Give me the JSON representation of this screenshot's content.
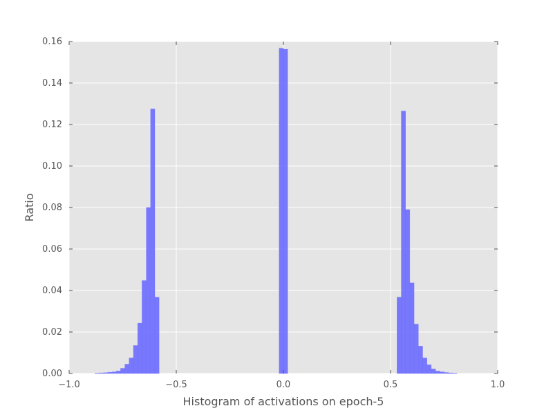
{
  "chart_data": {
    "type": "bar",
    "title": "",
    "xlabel": "Histogram of activations on epoch-5",
    "ylabel": "Ratio",
    "xlim": [
      -1.0,
      1.0
    ],
    "ylim": [
      0.0,
      0.16
    ],
    "grid": true,
    "colors": {
      "bar": "#6b6bff",
      "plot_background": "#e5e5e5",
      "grid": "#ffffff",
      "text": "#555555"
    },
    "x_ticks": [
      {
        "value": -1.0,
        "label": "−1.0"
      },
      {
        "value": -0.5,
        "label": "−0.5"
      },
      {
        "value": 0.0,
        "label": "0.0"
      },
      {
        "value": 0.5,
        "label": "0.5"
      },
      {
        "value": 1.0,
        "label": "1.0"
      }
    ],
    "y_ticks": [
      {
        "value": 0.0,
        "label": "0.00"
      },
      {
        "value": 0.02,
        "label": "0.02"
      },
      {
        "value": 0.04,
        "label": "0.04"
      },
      {
        "value": 0.06,
        "label": "0.06"
      },
      {
        "value": 0.08,
        "label": "0.08"
      },
      {
        "value": 0.1,
        "label": "0.10"
      },
      {
        "value": 0.12,
        "label": "0.12"
      },
      {
        "value": 0.14,
        "label": "0.14"
      },
      {
        "value": 0.16,
        "label": "0.16"
      }
    ],
    "bin_width": 0.02,
    "bins": [
      {
        "x0": -0.88,
        "value": 0.0002
      },
      {
        "x0": -0.86,
        "value": 0.0003
      },
      {
        "x0": -0.84,
        "value": 0.0004
      },
      {
        "x0": -0.82,
        "value": 0.0006
      },
      {
        "x0": -0.8,
        "value": 0.0008
      },
      {
        "x0": -0.78,
        "value": 0.0012
      },
      {
        "x0": -0.76,
        "value": 0.0025
      },
      {
        "x0": -0.74,
        "value": 0.0045
      },
      {
        "x0": -0.72,
        "value": 0.0075
      },
      {
        "x0": -0.7,
        "value": 0.0135
      },
      {
        "x0": -0.68,
        "value": 0.0243
      },
      {
        "x0": -0.66,
        "value": 0.0448
      },
      {
        "x0": -0.64,
        "value": 0.08
      },
      {
        "x0": -0.62,
        "value": 0.1275
      },
      {
        "x0": -0.6,
        "value": 0.0368
      },
      {
        "x0": -0.02,
        "value": 0.1568
      },
      {
        "x0": 0.0,
        "value": 0.1563
      },
      {
        "x0": 0.53,
        "value": 0.0368
      },
      {
        "x0": 0.55,
        "value": 0.1265
      },
      {
        "x0": 0.57,
        "value": 0.079
      },
      {
        "x0": 0.59,
        "value": 0.0437
      },
      {
        "x0": 0.61,
        "value": 0.0238
      },
      {
        "x0": 0.63,
        "value": 0.0132
      },
      {
        "x0": 0.65,
        "value": 0.0075
      },
      {
        "x0": 0.67,
        "value": 0.0042
      },
      {
        "x0": 0.69,
        "value": 0.0022
      },
      {
        "x0": 0.71,
        "value": 0.0012
      },
      {
        "x0": 0.73,
        "value": 0.0008
      },
      {
        "x0": 0.75,
        "value": 0.0005
      },
      {
        "x0": 0.77,
        "value": 0.0003
      },
      {
        "x0": 0.79,
        "value": 0.0002
      }
    ]
  }
}
